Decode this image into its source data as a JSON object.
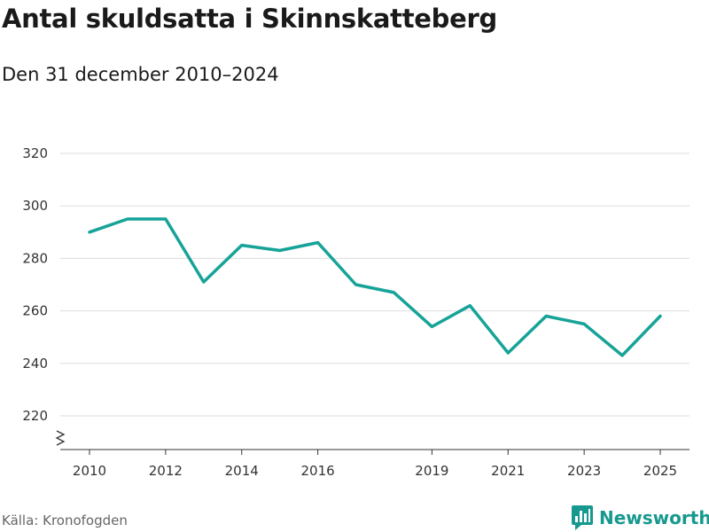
{
  "title": "Antal skuldsatta i Skinnskatteberg",
  "subtitle": "Den 31 december 2010–2024",
  "source": "Källa: Kronofogden",
  "brand": {
    "name": "Newsworthy",
    "icon": "bar-chart-speech-bubble-icon"
  },
  "colors": {
    "line": "#17a398",
    "brand": "#17998f",
    "grid": "#dddddd",
    "axis": "#333333"
  },
  "chart_data": {
    "type": "line",
    "title": "Antal skuldsatta i Skinnskatteberg",
    "subtitle": "Den 31 december 2010–2024",
    "xlabel": "",
    "ylabel": "",
    "x": [
      2010,
      2011,
      2012,
      2013,
      2014,
      2015,
      2016,
      2017,
      2018,
      2019,
      2020,
      2021,
      2022,
      2023,
      2024,
      2025
    ],
    "values": [
      290,
      295,
      295,
      271,
      285,
      283,
      286,
      270,
      267,
      254,
      262,
      244,
      258,
      255,
      243,
      258
    ],
    "xlim": [
      2010,
      2025
    ],
    "ylim": [
      208,
      320
    ],
    "y_ticks": [
      220,
      240,
      260,
      280,
      300,
      320
    ],
    "x_ticks": [
      2010,
      2012,
      2014,
      2016,
      2019,
      2021,
      2023,
      2025
    ],
    "grid": true,
    "y_axis_break": true
  }
}
